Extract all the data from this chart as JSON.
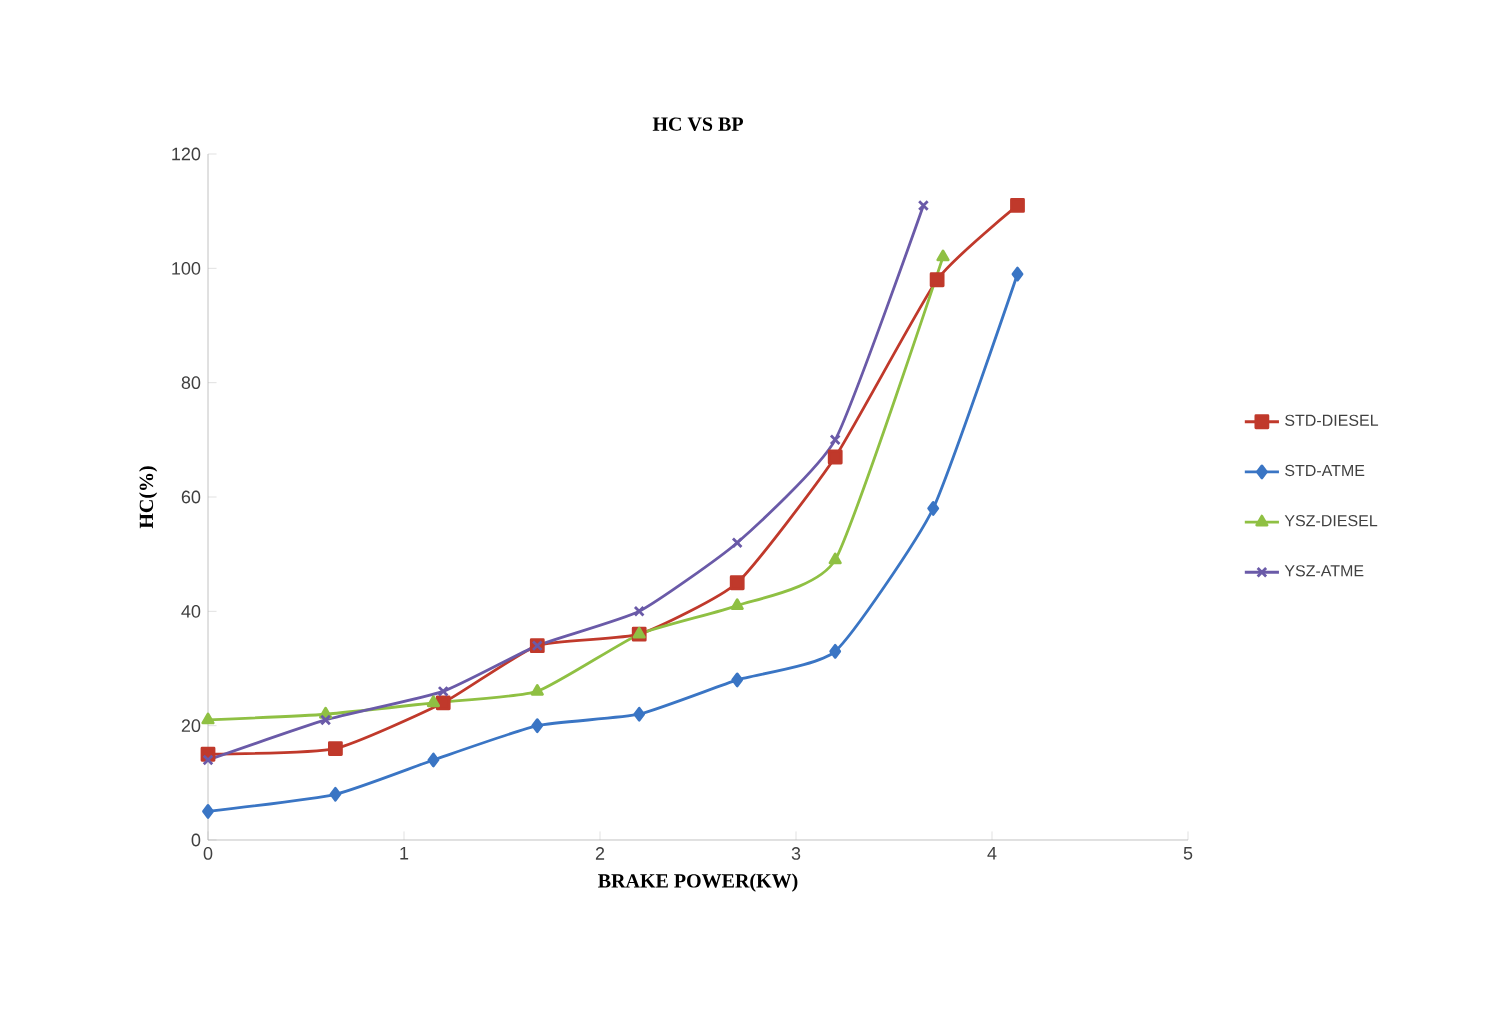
{
  "chart_data": {
    "type": "line",
    "title": "HC VS BP",
    "xlabel": "BRAKE POWER(KW)",
    "ylabel": "HC(%)",
    "xlim": [
      0,
      5
    ],
    "xticks": [
      0,
      1,
      2,
      3,
      4,
      5
    ],
    "ylim": [
      0,
      120
    ],
    "yticks": [
      0,
      20,
      40,
      60,
      80,
      100,
      120
    ],
    "grid": false,
    "legend": "right",
    "series": [
      {
        "name": "STD-DIESEL",
        "color": "#c0392b",
        "marker": "square",
        "x": [
          0,
          0.65,
          1.2,
          1.68,
          2.2,
          2.7,
          3.2,
          3.72,
          4.13
        ],
        "values": [
          15,
          16,
          24,
          34,
          36,
          45,
          67,
          98,
          111
        ]
      },
      {
        "name": "STD-ATME",
        "color": "#3a75c4",
        "marker": "diamond",
        "x": [
          0,
          0.65,
          1.15,
          1.68,
          2.2,
          2.7,
          3.2,
          3.7,
          4.13
        ],
        "values": [
          5,
          8,
          14,
          20,
          22,
          28,
          33,
          58,
          99
        ]
      },
      {
        "name": "YSZ-DIESEL",
        "color": "#8fc043",
        "marker": "triangle",
        "x": [
          0,
          0.6,
          1.15,
          1.68,
          2.2,
          2.7,
          3.2,
          3.75
        ],
        "values": [
          21,
          22,
          24,
          26,
          36,
          41,
          49,
          102
        ]
      },
      {
        "name": "YSZ-ATME",
        "color": "#6a5aa8",
        "marker": "cross",
        "x": [
          0,
          0.6,
          1.2,
          1.68,
          2.2,
          2.7,
          3.2,
          3.65
        ],
        "values": [
          14,
          21,
          26,
          34,
          40,
          52,
          70,
          111
        ]
      }
    ]
  }
}
